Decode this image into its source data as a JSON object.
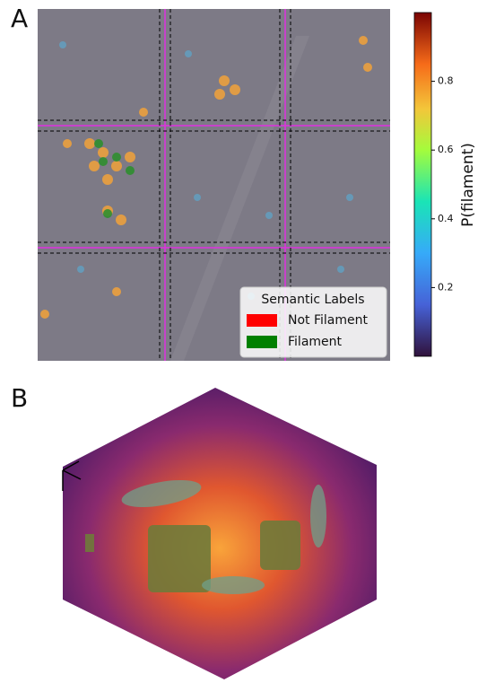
{
  "panel_a": {
    "label": "A",
    "colorbar": {
      "label": "P(filament)",
      "lim": [
        0,
        1
      ],
      "ticks": [
        0.2,
        0.4,
        0.6,
        0.8
      ]
    },
    "legend": {
      "title": "Semantic Labels",
      "entries": [
        {
          "name": "Not Filament",
          "color": "#ff0000"
        },
        {
          "name": "Filament",
          "color": "#008000"
        }
      ]
    }
  },
  "panel_b": {
    "label": "B"
  }
}
